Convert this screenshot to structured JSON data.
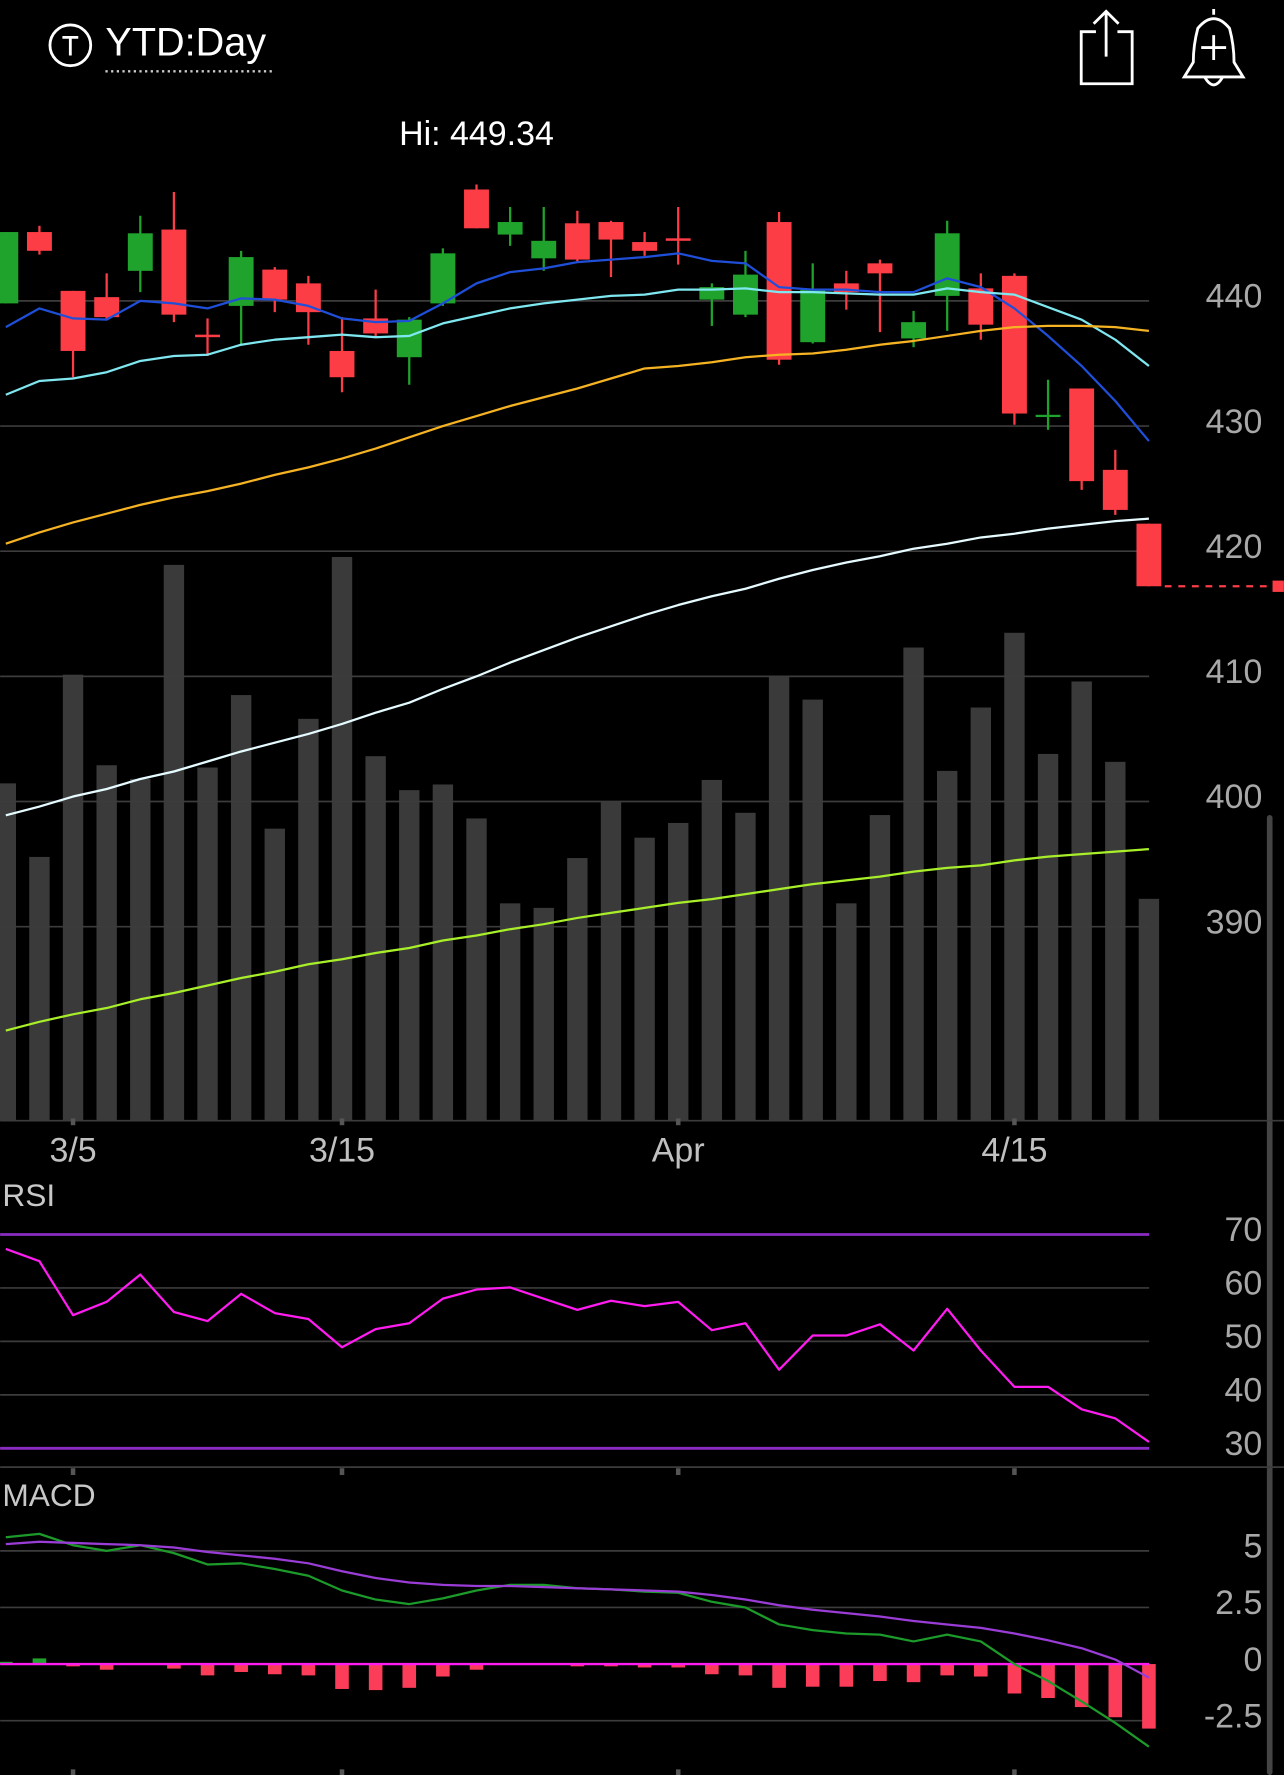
{
  "header": {
    "title": "YTD:Day"
  },
  "chart_data": [
    {
      "type": "candlestick",
      "annotation": "Hi: 449.34",
      "categories": [
        null,
        null,
        "3/5",
        null,
        null,
        null,
        null,
        null,
        null,
        null,
        "3/15",
        null,
        null,
        null,
        null,
        null,
        null,
        null,
        null,
        null,
        "Apr",
        null,
        null,
        null,
        null,
        null,
        null,
        null,
        null,
        null,
        "4/15",
        null,
        null,
        null,
        null
      ],
      "open": [
        439.8,
        445.5,
        440.8,
        440.3,
        442.4,
        445.7,
        437.3,
        439.6,
        442.5,
        441.4,
        436.0,
        438.6,
        435.5,
        439.8,
        448.9,
        445.3,
        443.4,
        446.2,
        446.3,
        444.7,
        445.0,
        440.1,
        438.9,
        446.3,
        436.7,
        441.4,
        443.0,
        437.0,
        440.4,
        441.0,
        442.0,
        430.8,
        433.0,
        426.5,
        422.2
      ],
      "high": [
        445.5,
        446.0,
        440.8,
        442.2,
        446.8,
        448.7,
        438.6,
        444.0,
        442.7,
        442.0,
        438.7,
        440.9,
        438.7,
        444.2,
        449.3,
        447.5,
        447.5,
        447.2,
        446.4,
        445.5,
        447.5,
        441.4,
        444.0,
        447.1,
        443.0,
        442.4,
        443.3,
        439.2,
        446.4,
        442.2,
        442.2,
        433.7,
        433.0,
        428.1,
        422.2
      ],
      "low": [
        439.8,
        443.7,
        433.9,
        438.5,
        440.7,
        438.3,
        435.6,
        436.5,
        439.1,
        436.5,
        432.7,
        437.2,
        433.3,
        439.6,
        445.8,
        444.4,
        442.4,
        443.1,
        441.9,
        443.6,
        442.9,
        438.0,
        438.7,
        434.9,
        436.6,
        439.3,
        437.5,
        436.3,
        437.6,
        436.9,
        430.1,
        429.7,
        424.9,
        422.9,
        417.2
      ],
      "close": [
        445.5,
        444.0,
        436.0,
        438.7,
        445.4,
        438.9,
        437.1,
        443.5,
        440.1,
        439.1,
        433.9,
        437.4,
        438.5,
        443.8,
        445.8,
        446.3,
        444.8,
        443.3,
        444.9,
        444.0,
        444.8,
        441.1,
        442.1,
        435.3,
        440.9,
        440.7,
        442.2,
        438.3,
        445.4,
        438.1,
        431.0,
        430.9,
        425.6,
        423.3,
        417.2
      ],
      "up_color": "#1fa32c",
      "down_color": "#fc3d46",
      "overlays": [
        {
          "color": "#1f4fd8",
          "values": [
            437.9,
            439.4,
            438.6,
            438.5,
            440.0,
            439.8,
            439.4,
            440.2,
            440.1,
            439.6,
            438.6,
            438.3,
            438.4,
            439.8,
            441.4,
            442.3,
            442.6,
            443.1,
            443.3,
            443.5,
            443.8,
            443.2,
            443.0,
            441.1,
            440.9,
            440.9,
            440.7,
            440.7,
            441.8,
            441.1,
            439.4,
            437.2,
            434.8,
            432.0,
            428.8
          ]
        },
        {
          "color": "#7fe7f0",
          "values": [
            432.5,
            433.6,
            433.8,
            434.3,
            435.2,
            435.6,
            435.7,
            436.5,
            436.9,
            437.1,
            437.3,
            437.1,
            437.2,
            438.2,
            438.8,
            439.4,
            439.8,
            440.1,
            440.4,
            440.5,
            440.9,
            440.9,
            441.0,
            440.7,
            440.7,
            440.6,
            440.5,
            440.5,
            441.0,
            440.7,
            440.5,
            439.5,
            438.5,
            436.9,
            434.8
          ]
        },
        {
          "color": "#f5b323",
          "values": [
            420.6,
            421.5,
            422.3,
            423.0,
            423.7,
            424.3,
            424.8,
            425.4,
            426.1,
            426.7,
            427.4,
            428.2,
            429.1,
            430.0,
            430.8,
            431.6,
            432.3,
            433.0,
            433.8,
            434.6,
            434.8,
            435.1,
            435.5,
            435.7,
            435.8,
            436.1,
            436.5,
            436.8,
            437.2,
            437.6,
            437.9,
            438.0,
            438.0,
            437.9,
            437.6
          ]
        },
        {
          "color": "#e6fbff",
          "values": [
            398.9,
            399.6,
            400.4,
            401.0,
            401.8,
            402.4,
            403.2,
            404.0,
            404.7,
            405.4,
            406.2,
            407.1,
            407.9,
            409.0,
            410.0,
            411.1,
            412.1,
            413.1,
            414.0,
            414.9,
            415.7,
            416.4,
            417.0,
            417.8,
            418.5,
            419.1,
            419.6,
            420.2,
            420.6,
            421.1,
            421.4,
            421.8,
            422.1,
            422.4,
            422.6
          ]
        },
        {
          "color": "#a8ef2a",
          "values": [
            381.7,
            382.4,
            383.0,
            383.5,
            384.2,
            384.7,
            385.3,
            385.9,
            386.4,
            387.0,
            387.4,
            387.9,
            388.3,
            388.9,
            389.3,
            389.8,
            390.2,
            390.7,
            391.1,
            391.5,
            391.9,
            392.2,
            392.6,
            393.0,
            393.4,
            393.7,
            394.0,
            394.4,
            394.7,
            394.9,
            395.3,
            395.6,
            395.8,
            396.0,
            396.2
          ]
        }
      ],
      "volume": {
        "color": "#3a3a3a",
        "values": [
          298,
          233,
          394,
          314,
          302,
          491,
          312,
          376,
          258,
          355,
          498,
          322,
          292,
          297,
          267,
          192,
          188,
          232,
          282,
          250,
          263,
          301,
          272,
          392,
          372,
          192,
          270,
          418,
          309,
          365,
          431,
          324,
          388,
          317,
          196
        ]
      },
      "vlim": [
        0,
        900
      ],
      "ylim": [
        374.5,
        455.9
      ],
      "yticks": [
        390,
        400,
        410,
        420,
        430,
        440
      ],
      "grid": true
    },
    {
      "type": "line",
      "title": "RSI",
      "series": [
        {
          "color": "#ff1cf0",
          "values": [
            67.3,
            65.0,
            54.9,
            57.4,
            62.5,
            55.5,
            53.8,
            58.9,
            55.3,
            54.2,
            48.9,
            52.3,
            53.4,
            58.0,
            59.7,
            60.1,
            58.0,
            55.9,
            57.6,
            56.6,
            57.4,
            52.1,
            53.4,
            44.7,
            51.1,
            51.1,
            53.2,
            48.3,
            56.1,
            48.3,
            41.5,
            41.5,
            37.3,
            35.6,
            31.2
          ]
        }
      ],
      "bands": [
        30,
        70
      ],
      "band_color": "#8a2bc2",
      "ylim": [
        26.7,
        80.7
      ],
      "yticks": [
        30,
        40,
        50,
        60,
        70
      ],
      "grid": true
    },
    {
      "type": "macd",
      "title": "MACD",
      "series": [
        {
          "color": "#1c9a2a",
          "values": [
            5.6,
            5.75,
            5.25,
            5.0,
            5.25,
            4.9,
            4.4,
            4.45,
            4.2,
            3.9,
            3.25,
            2.85,
            2.65,
            2.9,
            3.25,
            3.5,
            3.5,
            3.35,
            3.3,
            3.2,
            3.15,
            2.75,
            2.5,
            1.75,
            1.5,
            1.35,
            1.3,
            1.0,
            1.3,
            1.0,
            0,
            -0.75,
            -1.65,
            -2.6,
            -3.65
          ]
        },
        {
          "color": "#9a3dd6",
          "values": [
            5.3,
            5.4,
            5.35,
            5.3,
            5.25,
            5.15,
            4.95,
            4.8,
            4.65,
            4.45,
            4.1,
            3.8,
            3.6,
            3.5,
            3.45,
            3.45,
            3.4,
            3.35,
            3.3,
            3.25,
            3.2,
            3.05,
            2.85,
            2.6,
            2.4,
            2.25,
            2.1,
            1.9,
            1.75,
            1.6,
            1.35,
            1.05,
            0.7,
            0.2,
            -0.6
          ]
        }
      ],
      "histogram": {
        "up_color": "#1fa32c",
        "down_color": "#fc3d5a",
        "values": [
          0.1,
          0.25,
          -0.1,
          -0.25,
          0,
          -0.2,
          -0.5,
          -0.35,
          -0.45,
          -0.5,
          -1.1,
          -1.15,
          -1.05,
          -0.55,
          -0.25,
          0,
          0,
          -0.1,
          -0.1,
          -0.15,
          -0.15,
          -0.45,
          -0.5,
          -1.05,
          -1.0,
          -1.0,
          -0.75,
          -0.8,
          -0.5,
          -0.55,
          -1.3,
          -1.5,
          -1.9,
          -2.35,
          -2.85
        ]
      },
      "zero_color": "#ff1cf0",
      "ylim": [
        -4.75,
        8
      ],
      "yticks": [
        -2.5,
        0,
        2.5,
        5
      ],
      "grid": true
    }
  ]
}
